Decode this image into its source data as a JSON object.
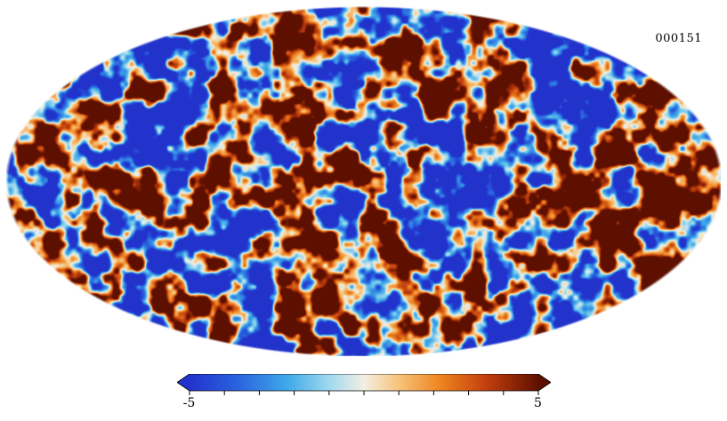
{
  "figure": {
    "background_color": "#ffffff",
    "text_color": "#000000"
  },
  "chart_data": {
    "type": "heatmap",
    "projection": "mollweide",
    "title": "",
    "frame_label": "000151",
    "description": "Full-sky Mollweide map of a CMB-like random Gaussian temperature field; values saturate at the colorbar limits of -5 and 5.",
    "colorbar": {
      "min": -5,
      "max": 5,
      "min_label": "-5",
      "max_label": "5",
      "ticks": [
        -5,
        -4,
        -3,
        -2,
        -1,
        0,
        1,
        2,
        3,
        4,
        5
      ],
      "legend_position": "bottom-center",
      "arrow_ends": true
    },
    "colormap_stops": [
      {
        "t": 0.0,
        "color": "#2233cc"
      },
      {
        "t": 0.14,
        "color": "#2a64e0"
      },
      {
        "t": 0.28,
        "color": "#3fa9e8"
      },
      {
        "t": 0.4,
        "color": "#9fd9ee"
      },
      {
        "t": 0.5,
        "color": "#f3efe4"
      },
      {
        "t": 0.6,
        "color": "#f6c37a"
      },
      {
        "t": 0.72,
        "color": "#ee8420"
      },
      {
        "t": 0.85,
        "color": "#c33f0e"
      },
      {
        "t": 1.0,
        "color": "#5e1000"
      }
    ],
    "render_seed": 151,
    "noise": {
      "octaves": [
        [
          24,
          1.0
        ],
        [
          12,
          0.5
        ],
        [
          6,
          0.22
        ]
      ],
      "gain": 2.4
    }
  }
}
